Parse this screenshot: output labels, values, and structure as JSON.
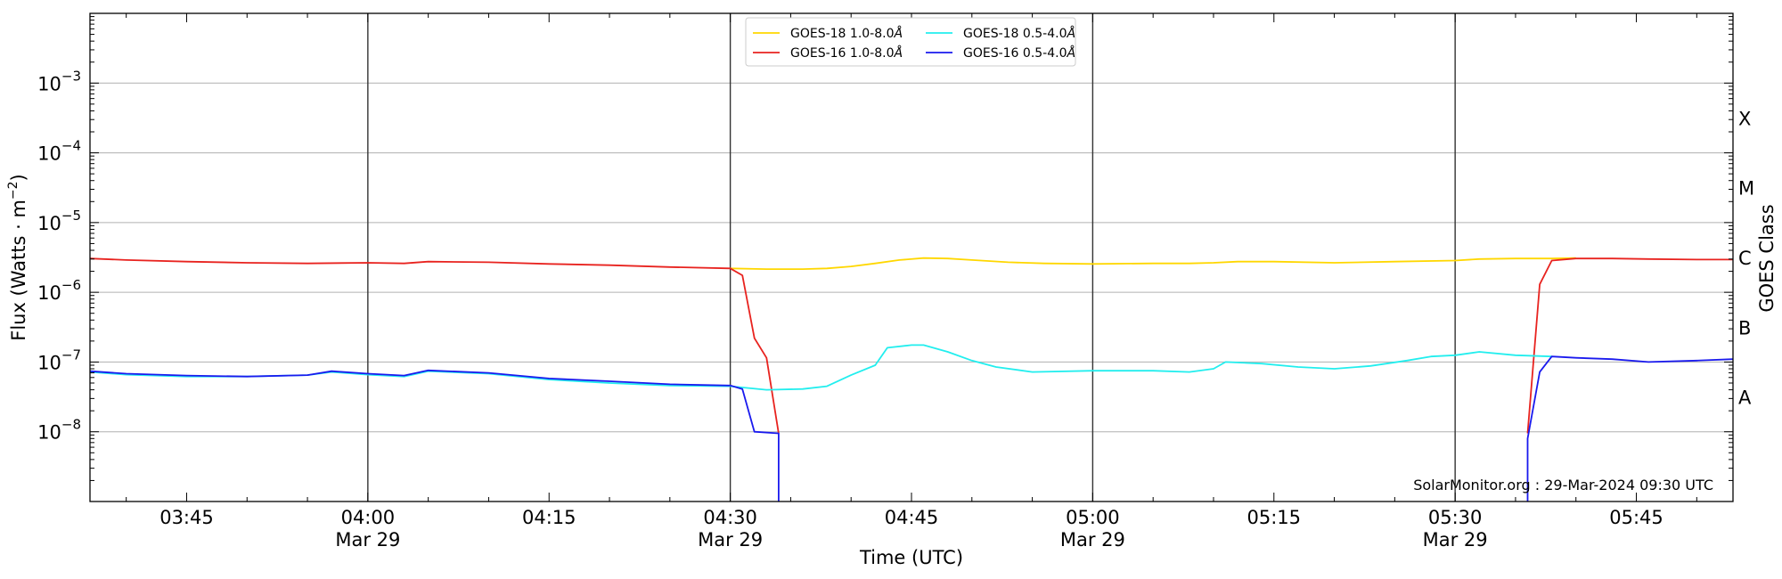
{
  "chart_data": {
    "type": "line",
    "credit": "SolarMonitor.org : 29-Mar-2024 09:30 UTC",
    "xlabel": "Time (UTC)",
    "ylabel_main": "Flux (Watts · m",
    "ylabel_sup": "−2",
    "ylabel_close": ")",
    "y2label": "GOES Class",
    "yscale": "log",
    "xlim": [
      "03:37",
      "05:53"
    ],
    "ylim": [
      1e-09,
      0.01
    ],
    "grid": "horizontal at decades; vertical lines every 30 min",
    "x_ticks": [
      {
        "time": "03:45",
        "label": "03:45",
        "date": ""
      },
      {
        "time": "04:00",
        "label": "04:00",
        "date": "Mar 29"
      },
      {
        "time": "04:15",
        "label": "04:15",
        "date": ""
      },
      {
        "time": "04:30",
        "label": "04:30",
        "date": "Mar 29"
      },
      {
        "time": "04:45",
        "label": "04:45",
        "date": ""
      },
      {
        "time": "05:00",
        "label": "05:00",
        "date": "Mar 29"
      },
      {
        "time": "05:15",
        "label": "05:15",
        "date": ""
      },
      {
        "time": "05:30",
        "label": "05:30",
        "date": "Mar 29"
      },
      {
        "time": "05:45",
        "label": "05:45",
        "date": ""
      }
    ],
    "y_ticks": [
      {
        "value": 1e-08,
        "mantissa": "10",
        "exp": "−8"
      },
      {
        "value": 1e-07,
        "mantissa": "10",
        "exp": "−7"
      },
      {
        "value": 1e-06,
        "mantissa": "10",
        "exp": "−6"
      },
      {
        "value": 1e-05,
        "mantissa": "10",
        "exp": "−5"
      },
      {
        "value": 0.0001,
        "mantissa": "10",
        "exp": "−4"
      },
      {
        "value": 0.001,
        "mantissa": "10",
        "exp": "−3"
      }
    ],
    "goes_classes": [
      {
        "label": "A",
        "value": 3.16e-08
      },
      {
        "label": "B",
        "value": 3.16e-07
      },
      {
        "label": "C",
        "value": 3.16e-06
      },
      {
        "label": "M",
        "value": 3.16e-05
      },
      {
        "label": "X",
        "value": 0.000316
      }
    ],
    "legend_placement": "top-center",
    "series": [
      {
        "name": "GOES-18 1.0-8.0",
        "angstrom": "Å",
        "color": "#ffd700",
        "points": [
          [
            "04:30",
            2.2e-06
          ],
          [
            "04:33",
            2.15e-06
          ],
          [
            "04:36",
            2.15e-06
          ],
          [
            "04:38",
            2.2e-06
          ],
          [
            "04:40",
            2.35e-06
          ],
          [
            "04:42",
            2.6e-06
          ],
          [
            "04:44",
            2.9e-06
          ],
          [
            "04:46",
            3.1e-06
          ],
          [
            "04:48",
            3.05e-06
          ],
          [
            "04:50",
            2.9e-06
          ],
          [
            "04:53",
            2.7e-06
          ],
          [
            "04:56",
            2.6e-06
          ],
          [
            "05:00",
            2.55e-06
          ],
          [
            "05:05",
            2.6e-06
          ],
          [
            "05:08",
            2.6e-06
          ],
          [
            "05:10",
            2.65e-06
          ],
          [
            "05:12",
            2.75e-06
          ],
          [
            "05:15",
            2.75e-06
          ],
          [
            "05:20",
            2.65e-06
          ],
          [
            "05:25",
            2.75e-06
          ],
          [
            "05:30",
            2.85e-06
          ],
          [
            "05:32",
            3e-06
          ],
          [
            "05:35",
            3.05e-06
          ],
          [
            "05:38",
            3.05e-06
          ],
          [
            "05:40",
            3.1e-06
          ]
        ]
      },
      {
        "name": "GOES-16 1.0-8.0",
        "angstrom": "Å",
        "color": "#e8231f",
        "points": [
          [
            "03:37",
            3.05e-06
          ],
          [
            "03:40",
            2.9e-06
          ],
          [
            "03:45",
            2.75e-06
          ],
          [
            "03:50",
            2.65e-06
          ],
          [
            "03:55",
            2.6e-06
          ],
          [
            "04:00",
            2.65e-06
          ],
          [
            "04:03",
            2.6e-06
          ],
          [
            "04:05",
            2.75e-06
          ],
          [
            "04:10",
            2.7e-06
          ],
          [
            "04:15",
            2.55e-06
          ],
          [
            "04:20",
            2.45e-06
          ],
          [
            "04:25",
            2.3e-06
          ],
          [
            "04:30",
            2.2e-06
          ],
          [
            "04:31",
            1.75e-06
          ],
          [
            "04:32",
            2.2e-07
          ],
          [
            "04:33",
            1.15e-07
          ],
          [
            "04:34",
            9.5e-09
          ],
          null,
          [
            "05:36",
            9.5e-09
          ],
          [
            "05:37",
            1.3e-06
          ],
          [
            "05:38",
            2.85e-06
          ],
          [
            "05:40",
            3.05e-06
          ],
          [
            "05:43",
            3.05e-06
          ],
          [
            "05:46",
            3e-06
          ],
          [
            "05:50",
            2.95e-06
          ],
          [
            "05:53",
            2.95e-06
          ]
        ]
      },
      {
        "name": "GOES-18 0.5-4.0",
        "angstrom": "Å",
        "color": "#22eeee",
        "points": [
          [
            "03:37",
            7.2e-08
          ],
          [
            "03:40",
            6.6e-08
          ],
          [
            "03:45",
            6.2e-08
          ],
          [
            "03:50",
            6.2e-08
          ],
          [
            "03:55",
            6.5e-08
          ],
          [
            "03:57",
            7.2e-08
          ],
          [
            "04:00",
            6.6e-08
          ],
          [
            "04:03",
            6.2e-08
          ],
          [
            "04:05",
            7.4e-08
          ],
          [
            "04:10",
            6.8e-08
          ],
          [
            "04:15",
            5.6e-08
          ],
          [
            "04:20",
            5e-08
          ],
          [
            "04:25",
            4.6e-08
          ],
          [
            "04:30",
            4.5e-08
          ],
          [
            "04:33",
            4e-08
          ],
          [
            "04:36",
            4.1e-08
          ],
          [
            "04:38",
            4.5e-08
          ],
          [
            "04:40",
            6.5e-08
          ],
          [
            "04:42",
            9e-08
          ],
          [
            "04:43",
            1.6e-07
          ],
          [
            "04:45",
            1.75e-07
          ],
          [
            "04:46",
            1.75e-07
          ],
          [
            "04:48",
            1.4e-07
          ],
          [
            "04:50",
            1.05e-07
          ],
          [
            "04:52",
            8.5e-08
          ],
          [
            "04:55",
            7.2e-08
          ],
          [
            "05:00",
            7.5e-08
          ],
          [
            "05:05",
            7.5e-08
          ],
          [
            "05:08",
            7.2e-08
          ],
          [
            "05:10",
            8e-08
          ],
          [
            "05:11",
            1e-07
          ],
          [
            "05:14",
            9.5e-08
          ],
          [
            "05:17",
            8.5e-08
          ],
          [
            "05:20",
            8e-08
          ],
          [
            "05:23",
            8.8e-08
          ],
          [
            "05:26",
            1.05e-07
          ],
          [
            "05:28",
            1.2e-07
          ],
          [
            "05:30",
            1.25e-07
          ],
          [
            "05:32",
            1.4e-07
          ],
          [
            "05:35",
            1.25e-07
          ],
          [
            "05:38",
            1.2e-07
          ]
        ]
      },
      {
        "name": "GOES-16 0.5-4.0",
        "angstrom": "Å",
        "color": "#1a1aee",
        "points": [
          [
            "03:37",
            7.4e-08
          ],
          [
            "03:40",
            6.8e-08
          ],
          [
            "03:45",
            6.4e-08
          ],
          [
            "03:50",
            6.2e-08
          ],
          [
            "03:55",
            6.5e-08
          ],
          [
            "03:57",
            7.4e-08
          ],
          [
            "04:00",
            6.8e-08
          ],
          [
            "04:03",
            6.4e-08
          ],
          [
            "04:05",
            7.6e-08
          ],
          [
            "04:10",
            7e-08
          ],
          [
            "04:15",
            5.8e-08
          ],
          [
            "04:20",
            5.3e-08
          ],
          [
            "04:25",
            4.8e-08
          ],
          [
            "04:30",
            4.6e-08
          ],
          [
            "04:31",
            4.1e-08
          ],
          [
            "04:32",
            1e-08
          ],
          [
            "04:34",
            9.5e-09
          ],
          [
            "04:34",
            1e-09
          ],
          null,
          [
            "05:36",
            1e-09
          ],
          [
            "05:36",
            8e-09
          ],
          [
            "05:37",
            7.2e-08
          ],
          [
            "05:38",
            1.2e-07
          ],
          [
            "05:40",
            1.15e-07
          ],
          [
            "05:43",
            1.1e-07
          ],
          [
            "05:46",
            1e-07
          ],
          [
            "05:50",
            1.05e-07
          ],
          [
            "05:53",
            1.1e-07
          ]
        ]
      }
    ]
  }
}
